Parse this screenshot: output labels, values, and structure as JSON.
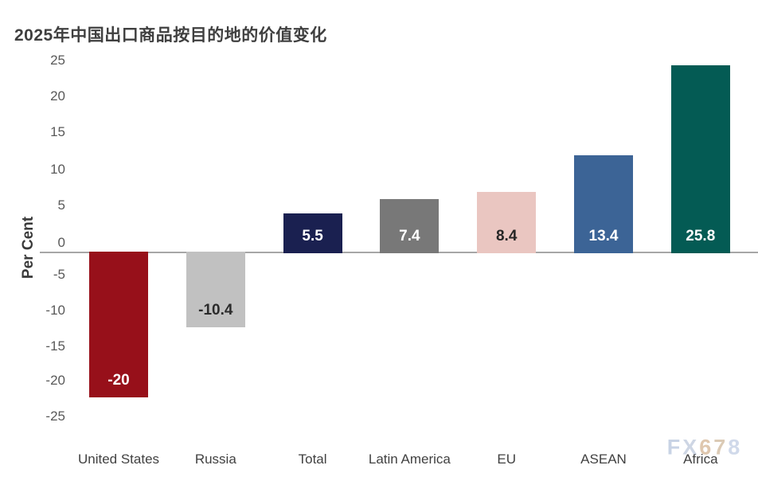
{
  "title": "2025年中国出口商品按目的地的价值变化",
  "watermark": {
    "text": "FX678",
    "letter_colors": [
      "#c3cfe3",
      "#c9d2e2",
      "#dcc2a6",
      "#d8c5ae",
      "#cbd5e8"
    ]
  },
  "colors": {
    "background": "#ffffff",
    "title_text": "#3f3f3f",
    "tick_text": "#595959",
    "xlabel_text": "#414141",
    "axis_line": "#a6a6a6"
  },
  "chart_data": {
    "type": "bar",
    "title": "2025年中国出口商品按目的地的价值变化",
    "xlabel": "",
    "ylabel": "Per Cent",
    "ylim": [
      -25,
      25
    ],
    "yticks": [
      25,
      20,
      15,
      10,
      5,
      0,
      -5,
      -10,
      -15,
      -20,
      -25
    ],
    "grid": false,
    "legend": false,
    "categories": [
      "United States",
      "Russia",
      "Total",
      "Latin America",
      "EU",
      "ASEAN",
      "Africa"
    ],
    "values": [
      -20,
      -10.4,
      5.5,
      7.4,
      8.4,
      13.4,
      25.8
    ],
    "bar_labels": [
      "-20",
      "-10.4",
      "5.5",
      "7.4",
      "8.4",
      "13.4",
      "25.8"
    ],
    "bar_colors": [
      "#97101a",
      "#c1c1c1",
      "#1a2050",
      "#787878",
      "#eac6c1",
      "#3c6496",
      "#045b54"
    ],
    "bar_label_colors": [
      "#ffffff",
      "#2b2b2b",
      "#ffffff",
      "#ffffff",
      "#262626",
      "#ffffff",
      "#ffffff"
    ]
  }
}
